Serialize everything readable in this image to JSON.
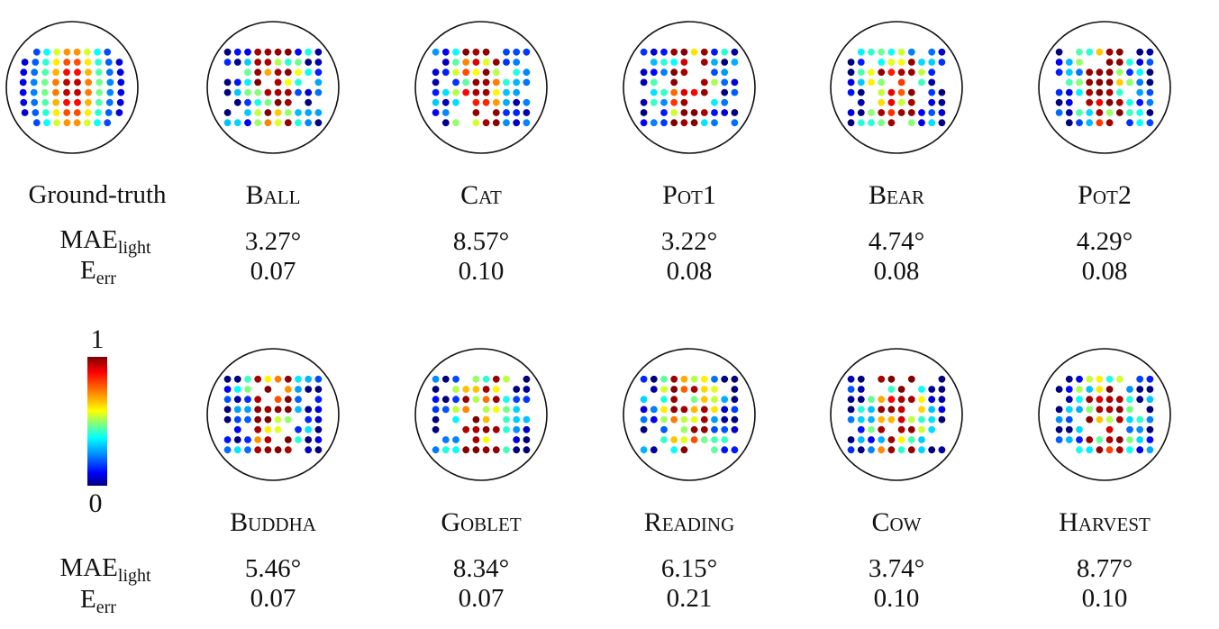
{
  "colorbar": {
    "max": "1",
    "min": "0"
  },
  "labels": {
    "mae": "MAE",
    "mae_sub": "light",
    "err": "E",
    "err_sub": "err"
  },
  "ground_truth": {
    "name": "Ground-truth"
  },
  "colormap": [
    "#00007f",
    "#0000ff",
    "#007fff",
    "#00ffff",
    "#7fff7f",
    "#ffff00",
    "#ff7f00",
    "#ff0000",
    "#7f0000"
  ],
  "panels": [
    {
      "name": "Ball",
      "mae": "3.27°",
      "err": "0.07"
    },
    {
      "name": "Cat",
      "mae": "8.57°",
      "err": "0.10"
    },
    {
      "name": "Pot1",
      "mae": "3.22°",
      "err": "0.08"
    },
    {
      "name": "Bear",
      "mae": "4.74°",
      "err": "0.08"
    },
    {
      "name": "Pot2",
      "mae": "4.29°",
      "err": "0.08"
    },
    {
      "name": "Buddha",
      "mae": "5.46°",
      "err": "0.07"
    },
    {
      "name": "Goblet",
      "mae": "8.34°",
      "err": "0.07"
    },
    {
      "name": "Reading",
      "mae": "6.15°",
      "err": "0.21"
    },
    {
      "name": "Cow",
      "mae": "3.74°",
      "err": "0.10"
    },
    {
      "name": "Harvest",
      "mae": "8.77°",
      "err": "0.10"
    }
  ]
}
